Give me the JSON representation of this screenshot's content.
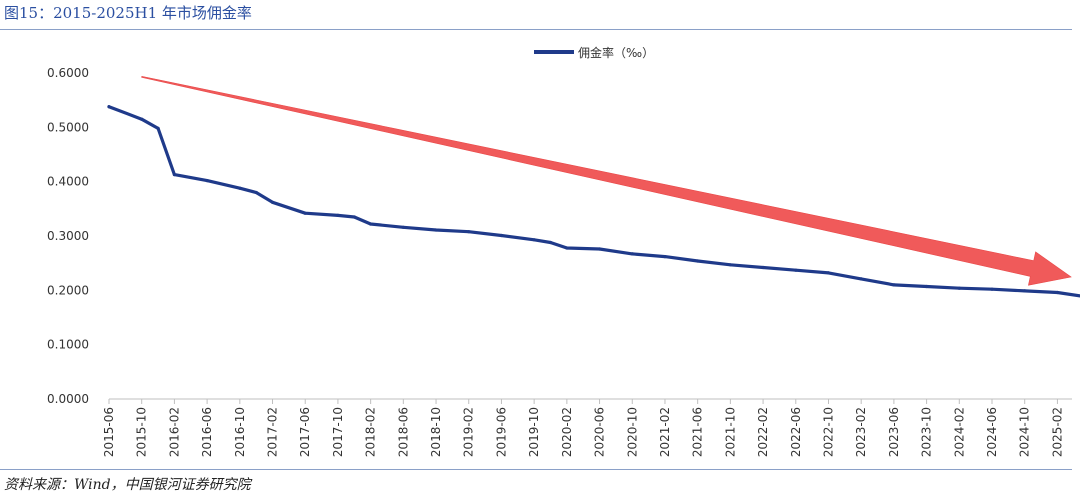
{
  "figure": {
    "title": "图15：2015-2025H1 年市场佣金率",
    "source": "资料来源：Wind，中国银河证券研究院"
  },
  "colors": {
    "series": "#1f3a8a",
    "trend": "#f05a5a",
    "rule": "#8aa0c8",
    "title": "#2b4fa1"
  },
  "chart_data": {
    "type": "line",
    "title": "",
    "xlabel": "",
    "ylabel": "",
    "ylim": [
      0,
      0.6
    ],
    "yticks": [
      "0.0000",
      "0.1000",
      "0.2000",
      "0.3000",
      "0.4000",
      "0.5000",
      "0.6000"
    ],
    "grid": false,
    "legend_position": "top-center",
    "categories": [
      "2015-06",
      "2015-10",
      "2016-02",
      "2016-06",
      "2016-10",
      "2017-02",
      "2017-06",
      "2017-10",
      "2018-02",
      "2018-06",
      "2018-10",
      "2019-02",
      "2019-06",
      "2019-10",
      "2020-02",
      "2020-06",
      "2020-10",
      "2021-02",
      "2021-06",
      "2021-10",
      "2022-02",
      "2022-06",
      "2022-10",
      "2023-02",
      "2023-06",
      "2023-10",
      "2024-02",
      "2024-06",
      "2024-10",
      "2025-02"
    ],
    "series": [
      {
        "name": "佣金率（‰）",
        "x": [
          "2015-06",
          "2015-10",
          "2015-12",
          "2016-02",
          "2016-06",
          "2016-10",
          "2016-12",
          "2017-02",
          "2017-06",
          "2017-10",
          "2017-12",
          "2018-02",
          "2018-06",
          "2018-10",
          "2019-02",
          "2019-06",
          "2019-10",
          "2019-12",
          "2020-02",
          "2020-06",
          "2020-10",
          "2021-02",
          "2021-06",
          "2021-10",
          "2022-02",
          "2022-06",
          "2022-10",
          "2023-02",
          "2023-06",
          "2023-10",
          "2024-02",
          "2024-06",
          "2024-10",
          "2025-02",
          "2025-06"
        ],
        "values": [
          0.538,
          0.515,
          0.498,
          0.413,
          0.402,
          0.388,
          0.38,
          0.362,
          0.342,
          0.338,
          0.335,
          0.322,
          0.316,
          0.311,
          0.308,
          0.301,
          0.293,
          0.288,
          0.278,
          0.276,
          0.267,
          0.262,
          0.254,
          0.247,
          0.242,
          0.237,
          0.232,
          0.221,
          0.21,
          0.207,
          0.204,
          0.202,
          0.199,
          0.196,
          0.187
        ]
      }
    ],
    "annotations": [
      {
        "type": "trend-arrow",
        "from": {
          "x": "2015-10",
          "y": 0.593
        },
        "to": {
          "x": "2025-02",
          "y": 0.23
        }
      }
    ]
  }
}
